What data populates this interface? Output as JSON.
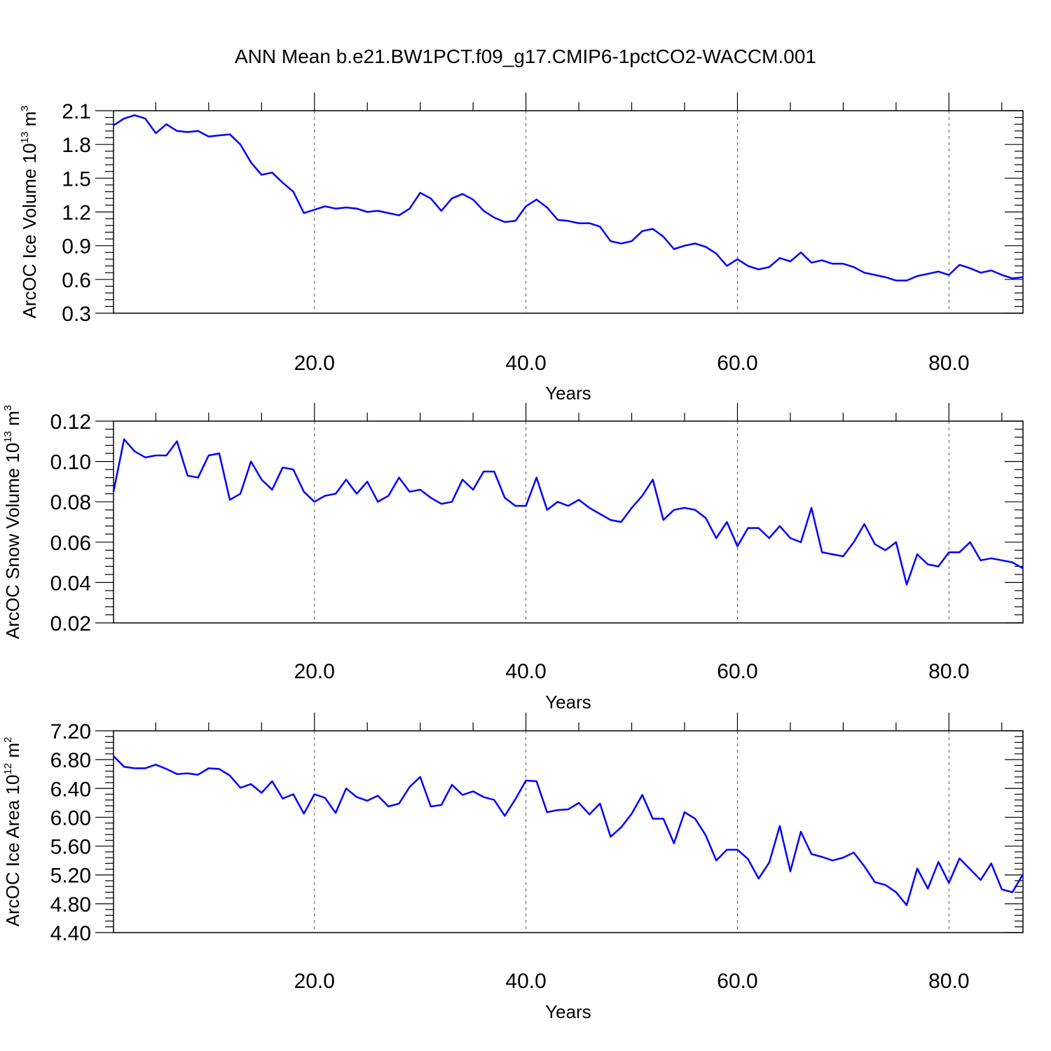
{
  "title": "ANN Mean b.e21.BW1PCT.f09_g17.CMIP6-1pctCO2-WACCM.001",
  "line_color": "#0000ff",
  "chart_data": [
    {
      "type": "line",
      "ylabel": {
        "text": "ArcOC Ice Volume 10",
        "exp": "13",
        "unit": " m",
        "unit_exp": "3"
      },
      "xlabel": "Years",
      "xlim": [
        1,
        87
      ],
      "ylim": [
        0.3,
        2.1
      ],
      "yticks": [
        "0.3",
        "0.6",
        "0.9",
        "1.2",
        "1.5",
        "1.8",
        "2.1"
      ],
      "xticks": [
        "20.0",
        "40.0",
        "60.0",
        "80.0"
      ],
      "grid_x": "dashed",
      "series": [
        {
          "values": [
            1.97,
            2.03,
            2.06,
            2.03,
            1.9,
            1.98,
            1.92,
            1.91,
            1.92,
            1.87,
            1.88,
            1.89,
            1.8,
            1.64,
            1.53,
            1.55,
            1.46,
            1.38,
            1.19,
            1.22,
            1.25,
            1.23,
            1.24,
            1.23,
            1.2,
            1.21,
            1.19,
            1.17,
            1.23,
            1.37,
            1.32,
            1.21,
            1.32,
            1.36,
            1.31,
            1.21,
            1.15,
            1.11,
            1.12,
            1.25,
            1.31,
            1.24,
            1.13,
            1.12,
            1.1,
            1.1,
            1.07,
            0.94,
            0.92,
            0.94,
            1.03,
            1.05,
            0.98,
            0.87,
            0.9,
            0.92,
            0.89,
            0.83,
            0.72,
            0.78,
            0.72,
            0.69,
            0.71,
            0.79,
            0.76,
            0.84,
            0.75,
            0.77,
            0.74,
            0.74,
            0.71,
            0.66,
            0.64,
            0.62,
            0.59,
            0.59,
            0.63,
            0.65,
            0.67,
            0.64,
            0.73,
            0.7,
            0.66,
            0.68,
            0.64,
            0.61,
            0.62
          ]
        }
      ]
    },
    {
      "type": "line",
      "ylabel": {
        "text": "ArcOC Snow Volume 10",
        "exp": "13",
        "unit": " m",
        "unit_exp": "3"
      },
      "xlabel": "Years",
      "xlim": [
        1,
        87
      ],
      "ylim": [
        0.02,
        0.12
      ],
      "yticks": [
        "0.02",
        "0.04",
        "0.06",
        "0.08",
        "0.10",
        "0.12"
      ],
      "xticks": [
        "20.0",
        "40.0",
        "60.0",
        "80.0"
      ],
      "grid_x": "dashed",
      "series": [
        {
          "values": [
            0.085,
            0.111,
            0.105,
            0.102,
            0.103,
            0.103,
            0.11,
            0.093,
            0.092,
            0.103,
            0.104,
            0.081,
            0.084,
            0.1,
            0.091,
            0.086,
            0.097,
            0.096,
            0.085,
            0.08,
            0.083,
            0.084,
            0.091,
            0.084,
            0.09,
            0.08,
            0.083,
            0.092,
            0.085,
            0.086,
            0.082,
            0.079,
            0.08,
            0.091,
            0.086,
            0.095,
            0.095,
            0.082,
            0.078,
            0.078,
            0.092,
            0.076,
            0.08,
            0.078,
            0.081,
            0.077,
            0.074,
            0.071,
            0.07,
            0.077,
            0.083,
            0.091,
            0.071,
            0.076,
            0.077,
            0.076,
            0.072,
            0.062,
            0.07,
            0.058,
            0.067,
            0.067,
            0.062,
            0.068,
            0.062,
            0.06,
            0.077,
            0.055,
            0.054,
            0.053,
            0.06,
            0.069,
            0.059,
            0.056,
            0.06,
            0.039,
            0.054,
            0.049,
            0.048,
            0.055,
            0.055,
            0.06,
            0.051,
            0.052,
            0.051,
            0.05,
            0.047
          ]
        }
      ]
    },
    {
      "type": "line",
      "ylabel": {
        "text": "ArcOC Ice Area 10",
        "exp": "12",
        "unit": " m",
        "unit_exp": "2"
      },
      "xlabel": "Years",
      "xlim": [
        1,
        87
      ],
      "ylim": [
        4.4,
        7.2
      ],
      "yticks": [
        "4.40",
        "4.80",
        "5.20",
        "5.60",
        "6.00",
        "6.40",
        "6.80",
        "7.20"
      ],
      "xticks": [
        "20.0",
        "40.0",
        "60.0",
        "80.0"
      ],
      "grid_x": "dashed",
      "series": [
        {
          "values": [
            6.85,
            6.7,
            6.68,
            6.68,
            6.73,
            6.67,
            6.6,
            6.61,
            6.59,
            6.68,
            6.67,
            6.58,
            6.41,
            6.46,
            6.34,
            6.5,
            6.26,
            6.32,
            6.05,
            6.32,
            6.27,
            6.06,
            6.4,
            6.28,
            6.23,
            6.3,
            6.15,
            6.19,
            6.42,
            6.56,
            6.15,
            6.17,
            6.45,
            6.31,
            6.36,
            6.28,
            6.24,
            6.02,
            6.25,
            6.51,
            6.5,
            6.07,
            6.1,
            6.11,
            6.2,
            6.04,
            6.19,
            5.73,
            5.86,
            6.05,
            6.31,
            5.98,
            5.98,
            5.64,
            6.07,
            5.98,
            5.75,
            5.4,
            5.55,
            5.55,
            5.42,
            5.15,
            5.37,
            5.88,
            5.25,
            5.8,
            5.49,
            5.45,
            5.4,
            5.44,
            5.51,
            5.32,
            5.1,
            5.06,
            4.96,
            4.78,
            5.29,
            5.01,
            5.38,
            5.09,
            5.43,
            5.28,
            5.13,
            5.36,
            5.0,
            4.96,
            5.21
          ]
        }
      ]
    }
  ]
}
